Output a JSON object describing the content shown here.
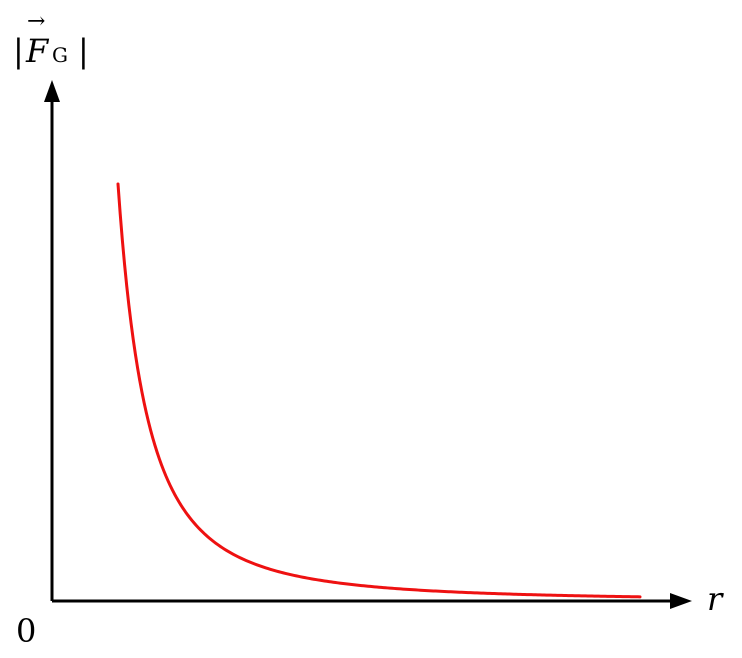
{
  "chart_data": {
    "type": "line",
    "title": "",
    "xlabel": "r",
    "ylabel": {
      "bar_open": "|",
      "symbol": "F",
      "vector_mark": "→",
      "subscript": "G",
      "bar_close": "|"
    },
    "origin_label": "0",
    "grid": false,
    "series": [
      {
        "relation": "inverse-square",
        "color": "#ee1111",
        "x": [
          1.0,
          1.15,
          1.3,
          1.5,
          1.75,
          2.0,
          2.5,
          3.0,
          3.5,
          4.0,
          5.0,
          6.0,
          7.0,
          8.0,
          9.0,
          10.0
        ],
        "y": [
          1.0,
          0.756,
          0.592,
          0.444,
          0.327,
          0.25,
          0.16,
          0.111,
          0.082,
          0.0625,
          0.04,
          0.028,
          0.02,
          0.0156,
          0.0123,
          0.01
        ]
      }
    ],
    "xlim": [
      0,
      10.3
    ],
    "ylim": [
      0,
      1.0
    ]
  }
}
